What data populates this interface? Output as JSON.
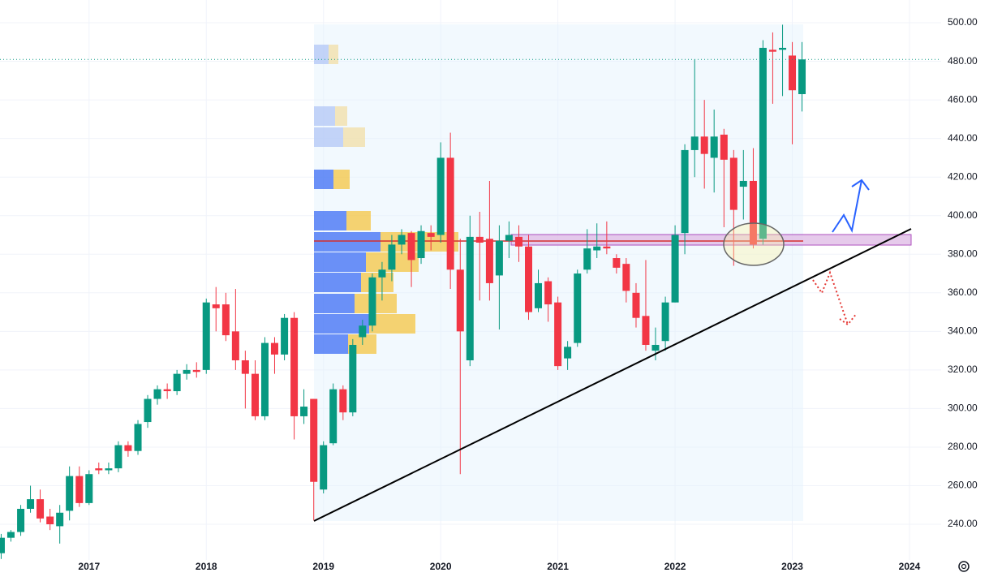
{
  "chart_data": {
    "type": "candlestick",
    "x": [
      2016.25,
      2016.333,
      2016.417,
      2016.5,
      2016.583,
      2016.667,
      2016.75,
      2016.833,
      2016.917,
      2017.0,
      2017.083,
      2017.167,
      2017.25,
      2017.333,
      2017.417,
      2017.5,
      2017.583,
      2017.667,
      2017.75,
      2017.833,
      2017.917,
      2018.0,
      2018.083,
      2018.167,
      2018.25,
      2018.333,
      2018.417,
      2018.5,
      2018.583,
      2018.667,
      2018.75,
      2018.833,
      2018.917,
      2019.0,
      2019.083,
      2019.167,
      2019.25,
      2019.333,
      2019.417,
      2019.5,
      2019.583,
      2019.667,
      2019.75,
      2019.833,
      2019.917,
      2020.0,
      2020.083,
      2020.167,
      2020.25,
      2020.333,
      2020.417,
      2020.5,
      2020.583,
      2020.667,
      2020.75,
      2020.833,
      2020.917,
      2021.0,
      2021.083,
      2021.167,
      2021.25,
      2021.333,
      2021.417,
      2021.5,
      2021.583,
      2021.667,
      2021.75,
      2021.833,
      2021.917,
      2022.0,
      2022.083,
      2022.167,
      2022.25,
      2022.333,
      2022.417,
      2022.5,
      2022.583,
      2022.667,
      2022.75,
      2022.833,
      2022.917,
      2023.0,
      2023.083
    ],
    "open": [
      225,
      233,
      236,
      248,
      253,
      244,
      239,
      247,
      265,
      251,
      269,
      268,
      269,
      281,
      278,
      293,
      305,
      310,
      309,
      318,
      320,
      320,
      354,
      354,
      340,
      325,
      318,
      296,
      334,
      328,
      347,
      296,
      305,
      258,
      282,
      310,
      298,
      337,
      343,
      368,
      372,
      385,
      391,
      378,
      391,
      390,
      430,
      372,
      325,
      389,
      388,
      369,
      387,
      389,
      384,
      352,
      366,
      355,
      326,
      334,
      372,
      382,
      384,
      378,
      375,
      360,
      348,
      330,
      335,
      355,
      391,
      434,
      441,
      430,
      442,
      430,
      415,
      418,
      388,
      486,
      486,
      483,
      463
    ],
    "high": [
      235,
      237,
      250,
      260,
      258,
      248,
      250,
      270,
      270,
      268,
      272,
      272,
      283,
      283,
      294,
      307,
      312,
      313,
      320,
      323,
      324,
      357,
      363,
      360,
      362,
      330,
      325,
      337,
      337,
      349,
      350,
      310,
      305,
      283,
      313,
      312,
      336,
      346,
      370,
      376,
      390,
      393,
      392,
      395,
      395,
      438,
      443,
      388,
      400,
      402,
      418,
      395,
      397,
      395,
      390,
      372,
      368,
      358,
      335,
      372,
      393,
      396,
      397,
      380,
      378,
      365,
      377,
      342,
      358,
      395,
      437,
      481,
      460,
      455,
      445,
      434,
      434,
      435,
      491,
      495,
      499,
      490,
      490
    ],
    "low": [
      222,
      231,
      234,
      246,
      241,
      237,
      230,
      242,
      249,
      250,
      266,
      266,
      267,
      275,
      276,
      290,
      302,
      305,
      307,
      315,
      316,
      318,
      340,
      335,
      320,
      300,
      294,
      294,
      318,
      325,
      284,
      292,
      242,
      256,
      281,
      294,
      296,
      333,
      340,
      356,
      366,
      380,
      363,
      375,
      382,
      386,
      362,
      266,
      322,
      356,
      356,
      341,
      378,
      376,
      346,
      350,
      345,
      320,
      320,
      332,
      370,
      378,
      380,
      370,
      355,
      342,
      330,
      325,
      330,
      355,
      380,
      420,
      414,
      412,
      394,
      374,
      398,
      383,
      385,
      458,
      462,
      437,
      454
    ],
    "close": [
      233,
      236,
      248,
      253,
      243,
      240,
      246,
      265,
      251,
      266,
      268,
      269,
      281,
      278,
      292,
      305,
      310,
      309,
      318,
      320,
      319,
      355,
      352,
      338,
      325,
      318,
      296,
      334,
      328,
      347,
      296,
      301,
      262,
      281,
      310,
      298,
      333,
      343,
      368,
      372,
      385,
      390,
      377,
      392,
      389,
      430,
      372,
      340,
      389,
      386,
      365,
      387,
      390,
      384,
      350,
      365,
      354,
      322,
      332,
      370,
      383,
      384,
      383,
      373,
      361,
      347,
      333,
      333,
      355,
      390,
      434,
      441,
      432,
      441,
      429,
      403,
      418,
      385,
      487,
      485,
      487,
      465,
      481
    ],
    "up_color": "#089981",
    "down_color": "#f23645",
    "xlim": [
      2016.24,
      2024.27
    ],
    "xticks": [
      2017,
      2018,
      2019,
      2020,
      2021,
      2022,
      2023,
      2024
    ],
    "ylim": [
      221.5,
      511.8
    ],
    "yticks": [
      {
        "value": 240,
        "label": "240.00"
      },
      {
        "value": 260,
        "label": "260.00"
      },
      {
        "value": 280,
        "label": "280.00"
      },
      {
        "value": 300,
        "label": "300.00"
      },
      {
        "value": 320,
        "label": "320.00"
      },
      {
        "value": 340,
        "label": "340.00"
      },
      {
        "value": 360,
        "label": "360.00"
      },
      {
        "value": 380,
        "label": "380.00"
      },
      {
        "value": 400,
        "label": "400.00"
      },
      {
        "value": 420,
        "label": "420.00"
      },
      {
        "value": 440,
        "label": "440.00"
      },
      {
        "value": 460,
        "label": "460.00"
      },
      {
        "value": 480,
        "label": "480.00"
      },
      {
        "value": 500,
        "label": "500.00"
      }
    ],
    "grid": true
  }
}
